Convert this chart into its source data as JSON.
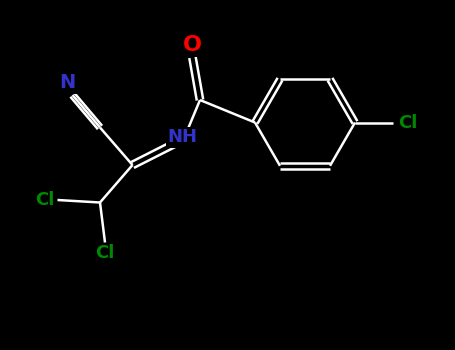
{
  "background_color": "#000000",
  "bond_color": "#ffffff",
  "bond_width": 1.8,
  "atom_colors": {
    "N": "#3333cc",
    "O": "#ff0000",
    "Cl": "#008800",
    "C": "#ffffff"
  },
  "figsize": [
    4.55,
    3.5
  ],
  "dpi": 100,
  "xlim": [
    0,
    9.1
  ],
  "ylim": [
    0,
    7.0
  ]
}
